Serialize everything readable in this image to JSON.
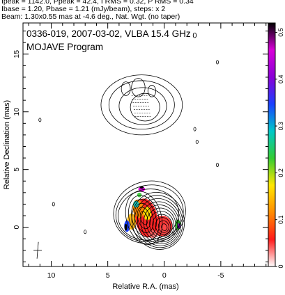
{
  "header": {
    "line1": "Ipeak = 1142.0, Ppeak = 42.4, I RMS = 0.32, P RMS = 0.34",
    "line2": "Ibase = 1.20, Pbase = 1.21 (mJy/beam), steps: x 2",
    "line3": "Beam: 1.30x0.55 mas at -4.6 deg., Nat. Wgt. (no taper)"
  },
  "chart_data": {
    "type": "contour",
    "title": "0336-019, 2007-03-02, VLBA 15.4 GHz",
    "subtitle": "MOJAVE Program",
    "xlabel": "Relative R.A. (mas)",
    "ylabel": "Relative Declination (mas)",
    "xlim": [
      12.5,
      -9.2
    ],
    "ylim": [
      -3.4,
      17.7
    ],
    "x_ticks": [
      10,
      5,
      0,
      -5
    ],
    "y_ticks": [
      0,
      5,
      10,
      15
    ],
    "colorbar": {
      "ticks": [
        0,
        0.1,
        0.2,
        0.3,
        0.4,
        0.5
      ],
      "range": [
        0,
        0.52
      ],
      "colors": [
        "#ffffff",
        "#ff1a1a",
        "#ff8c00",
        "#ffe600",
        "#33cc33",
        "#00c8c8",
        "#1a40ff",
        "#8a00d6",
        "#d800d8",
        "#000000"
      ]
    },
    "core": {
      "x": 0,
      "y": 0,
      "levels": 11
    },
    "jet_knot": {
      "x": 1.8,
      "y": 0.8
    },
    "outer_component": {
      "x": 2.0,
      "y": 10.5
    },
    "beam": {
      "major": 1.3,
      "minor": 0.55,
      "pa": -4.6
    },
    "grid": false
  }
}
